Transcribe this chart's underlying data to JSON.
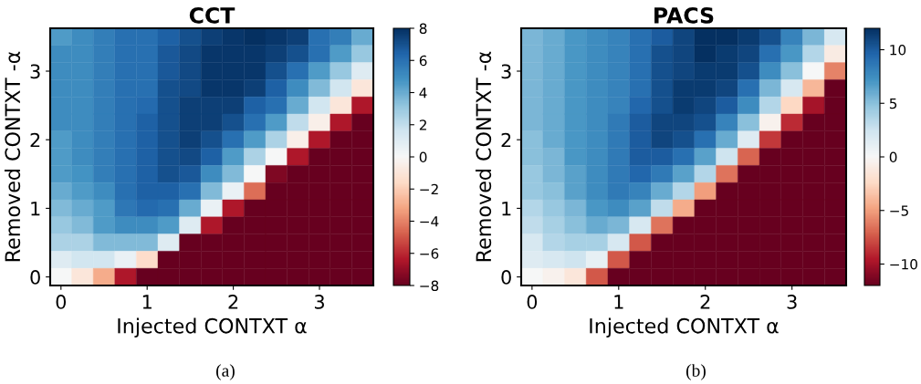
{
  "chart_data": [
    {
      "type": "heatmap",
      "title": "CCT",
      "xlabel": "Injected CONTXT α",
      "ylabel": "Removed CONTXT -α",
      "annotations": [
        "(a)"
      ],
      "categories": [
        "0",
        null,
        null,
        null,
        "1",
        null,
        null,
        null,
        "2",
        null,
        null,
        null,
        "3",
        null,
        null
      ],
      "y_categories": [
        null,
        null,
        "3",
        null,
        null,
        null,
        "2",
        null,
        null,
        null,
        "1",
        null,
        null,
        null,
        "0"
      ],
      "clim": [
        -8,
        8
      ],
      "cticks": [
        -8,
        -6,
        -4,
        -2,
        0,
        2,
        4,
        6,
        8
      ],
      "cells": [
        [
          4.5,
          5,
          5.5,
          6,
          6,
          6.5,
          7,
          7.5,
          7.8,
          8,
          7.8,
          7.5,
          6,
          5.5,
          4
        ],
        [
          5,
          5,
          5.5,
          6,
          6,
          6.8,
          7.2,
          7.8,
          7.8,
          7.8,
          7.5,
          7,
          6,
          4.5,
          3
        ],
        [
          5,
          5,
          5.5,
          6,
          6,
          6.8,
          7.2,
          7.8,
          7.8,
          7.8,
          7,
          6,
          4.5,
          3,
          1
        ],
        [
          5,
          5,
          5.5,
          6,
          6,
          7,
          7.2,
          7.8,
          7.8,
          7.5,
          6.5,
          5,
          3.5,
          1.5,
          -1
        ],
        [
          5,
          5,
          5.5,
          6,
          6.2,
          7,
          7.5,
          7.5,
          7.5,
          6.5,
          6,
          4,
          1.5,
          -1,
          -6.5
        ],
        [
          5,
          5,
          5.5,
          6,
          6.5,
          7,
          7.5,
          7.5,
          7,
          6,
          4.5,
          2,
          -0.5,
          -6.5,
          -8
        ],
        [
          4.5,
          5,
          5.5,
          6,
          6.5,
          7,
          7.5,
          7,
          6,
          4.5,
          2.5,
          -0.5,
          -6.5,
          -8,
          -8
        ],
        [
          4.5,
          5,
          5.5,
          6,
          6.5,
          7,
          7.2,
          6.5,
          4.5,
          2.5,
          0,
          -6.5,
          -8,
          -8,
          -8
        ],
        [
          4.5,
          4.8,
          5.5,
          6,
          6.5,
          7,
          6.8,
          5,
          3.5,
          0,
          -7.5,
          -8,
          -8,
          -8,
          -8
        ],
        [
          4,
          4.5,
          5,
          6,
          6.5,
          6.5,
          6,
          3.5,
          0.5,
          -4.5,
          -8,
          -8,
          -8,
          -8,
          -8
        ],
        [
          3.5,
          4,
          4.5,
          5.8,
          6.2,
          6,
          4,
          0.5,
          -6.5,
          -8,
          -8,
          -8,
          -8,
          -8,
          -8
        ],
        [
          3,
          3.5,
          4.5,
          5,
          5,
          4.5,
          1,
          -6.5,
          -8,
          -8,
          -8,
          -8,
          -8,
          -8,
          -8
        ],
        [
          2.5,
          2.5,
          3.5,
          3.5,
          3.5,
          1,
          -8,
          -8,
          -8,
          -8,
          -8,
          -8,
          -8,
          -8,
          -8
        ],
        [
          1,
          1.5,
          1.5,
          0.5,
          -1.5,
          -8,
          -8,
          -8,
          -8,
          -8,
          -8,
          -8,
          -8,
          -8,
          -8
        ],
        [
          0,
          -1,
          -3,
          -6.5,
          -8,
          -8,
          -8,
          -8,
          -8,
          -8,
          -8,
          -8,
          -8,
          -8,
          -8
        ]
      ]
    },
    {
      "type": "heatmap",
      "title": "PACS",
      "xlabel": "Injected CONTXT α",
      "ylabel": "Removed CONTXT -α",
      "annotations": [
        "(b)"
      ],
      "categories": [
        "0",
        null,
        null,
        null,
        "1",
        null,
        null,
        null,
        "2",
        null,
        null,
        null,
        "3",
        null,
        null
      ],
      "y_categories": [
        null,
        null,
        "3",
        null,
        null,
        null,
        "2",
        null,
        null,
        null,
        "1",
        null,
        null,
        null,
        "0"
      ],
      "clim": [
        -12,
        12
      ],
      "cticks": [
        -10,
        -5,
        0,
        5,
        10
      ],
      "cells": [
        [
          5.5,
          6,
          7,
          7.5,
          8,
          9,
          10,
          11,
          12,
          12,
          11.5,
          10.5,
          8,
          5.5,
          2
        ],
        [
          5.5,
          6,
          7,
          7.5,
          8,
          9,
          10.5,
          11,
          12,
          11.5,
          11,
          9,
          7,
          3.5,
          -1
        ],
        [
          5.5,
          6,
          7,
          7.5,
          8,
          9,
          10.5,
          11,
          11.5,
          11.5,
          10.5,
          7.5,
          5,
          0,
          -6
        ],
        [
          5.5,
          6,
          7,
          7.5,
          8,
          9,
          10.5,
          11.5,
          11.5,
          11,
          9,
          5.5,
          2,
          -4,
          -12
        ],
        [
          5.5,
          6,
          7,
          7.5,
          8,
          9.5,
          10.5,
          11.5,
          11,
          10,
          7.5,
          3.5,
          -2.5,
          -10,
          -12
        ],
        [
          5.5,
          6,
          7,
          7.5,
          8.5,
          10,
          11,
          11,
          10.5,
          8,
          5,
          -0.5,
          -9,
          -12,
          -12
        ],
        [
          5,
          6,
          7,
          7.5,
          8.5,
          10,
          11,
          10.5,
          9,
          6,
          1.5,
          -8.5,
          -12,
          -12,
          -12
        ],
        [
          5,
          5.5,
          7,
          7.5,
          8.5,
          10,
          10,
          9,
          6.5,
          2.5,
          -7,
          -12,
          -12,
          -12,
          -12
        ],
        [
          4.5,
          5.5,
          6.5,
          7.5,
          8.5,
          9.5,
          8.5,
          6.5,
          3.5,
          -6.5,
          -12,
          -12,
          -12,
          -12,
          -12
        ],
        [
          4.5,
          5,
          6.5,
          7.5,
          8.5,
          8,
          6,
          3.5,
          -5,
          -12,
          -12,
          -12,
          -12,
          -12,
          -12
        ],
        [
          3.5,
          4.5,
          5.5,
          7,
          7.5,
          6.5,
          3,
          -4.5,
          -12,
          -12,
          -12,
          -12,
          -12,
          -12,
          -12
        ],
        [
          3,
          4,
          5,
          6,
          5.5,
          2,
          -6.5,
          -12,
          -12,
          -12,
          -12,
          -12,
          -12,
          -12,
          -12
        ],
        [
          2,
          3.5,
          4,
          4,
          2,
          -7.5,
          -12,
          -12,
          -12,
          -12,
          -12,
          -12,
          -12,
          -12,
          -12
        ],
        [
          1.5,
          2,
          2.5,
          1,
          -7.5,
          -12,
          -12,
          -12,
          -12,
          -12,
          -12,
          -12,
          -12,
          -12,
          -12
        ],
        [
          0,
          -0.5,
          -1.5,
          -7.5,
          -12,
          -12,
          -12,
          -12,
          -12,
          -12,
          -12,
          -12,
          -12,
          -12,
          -12
        ]
      ]
    }
  ]
}
